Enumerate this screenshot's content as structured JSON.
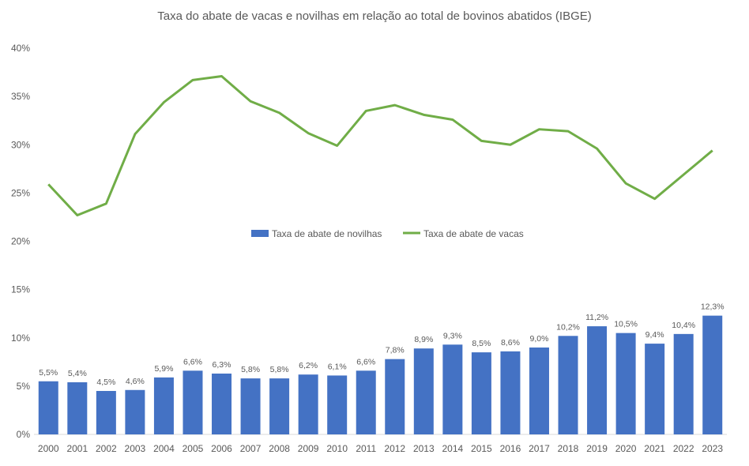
{
  "chart_data": {
    "type": "bar+line",
    "title": "Taxa do abate de vacas e novilhas em relação ao total de bovinos abatidos (IBGE)",
    "categories": [
      "2000",
      "2001",
      "2002",
      "2003",
      "2004",
      "2005",
      "2006",
      "2007",
      "2008",
      "2009",
      "2010",
      "2011",
      "2012",
      "2013",
      "2014",
      "2015",
      "2016",
      "2017",
      "2018",
      "2019",
      "2020",
      "2021",
      "2022",
      "2023"
    ],
    "ylim": [
      0,
      40
    ],
    "yticks": [
      "0%",
      "5%",
      "10%",
      "15%",
      "20%",
      "25%",
      "30%",
      "35%",
      "40%"
    ],
    "legend_position": "center",
    "series": [
      {
        "name": "Taxa de abate de novilhas",
        "type": "bar",
        "color": "#4472C4",
        "values": [
          5.5,
          5.4,
          4.5,
          4.6,
          5.9,
          6.6,
          6.3,
          5.8,
          5.8,
          6.2,
          6.1,
          6.6,
          7.8,
          8.9,
          9.3,
          8.5,
          8.6,
          9.0,
          10.2,
          11.2,
          10.5,
          9.4,
          10.4,
          12.3
        ],
        "labels": [
          "5,5%",
          "5,4%",
          "4,5%",
          "4,6%",
          "5,9%",
          "6,6%",
          "6,3%",
          "5,8%",
          "5,8%",
          "6,2%",
          "6,1%",
          "6,6%",
          "7,8%",
          "8,9%",
          "9,3%",
          "8,5%",
          "8,6%",
          "9,0%",
          "10,2%",
          "11,2%",
          "10,5%",
          "9,4%",
          "10,4%",
          "12,3%"
        ]
      },
      {
        "name": "Taxa de abate de vacas",
        "type": "line",
        "color": "#70AD47",
        "values": [
          25.9,
          22.7,
          23.9,
          31.1,
          34.4,
          36.7,
          37.1,
          34.5,
          33.3,
          31.2,
          29.9,
          33.5,
          34.1,
          33.1,
          32.6,
          30.4,
          30.0,
          31.6,
          31.4,
          29.6,
          26.0,
          24.4,
          26.9,
          29.4
        ]
      }
    ]
  }
}
